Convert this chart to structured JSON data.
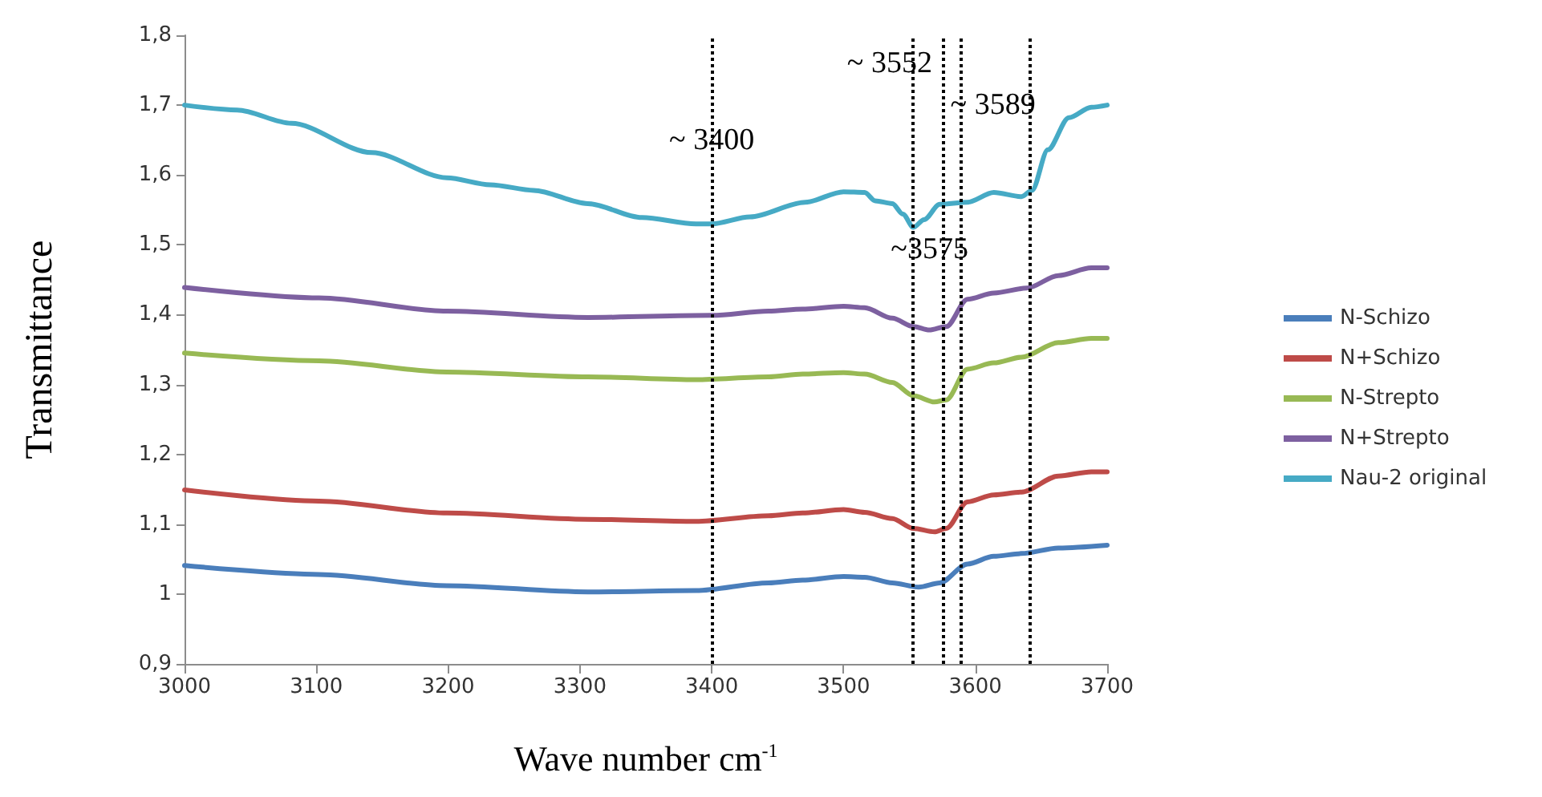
{
  "chart_data": {
    "type": "line",
    "xlabel": "Wave number cm$^{-1}$",
    "ylabel": "Transmittance",
    "xlim": [
      3000,
      3700
    ],
    "xticks": [
      3000,
      3100,
      3200,
      3300,
      3400,
      3500,
      3600,
      3700
    ],
    "ylim": [
      0.9,
      1.8
    ],
    "yticks": [
      {
        "value": 0.9,
        "label": "0,9"
      },
      1,
      {
        "value": 1.1,
        "label": "1,1"
      },
      {
        "value": 1.2,
        "label": "1,2"
      },
      {
        "value": 1.3,
        "label": "1,3"
      },
      {
        "value": 1.4,
        "label": "1,4"
      },
      {
        "value": 1.5,
        "label": "1,5"
      },
      {
        "value": 1.6,
        "label": "1,6"
      },
      {
        "value": 1.7,
        "label": "1,7"
      },
      {
        "value": 1.8,
        "label": "1,8"
      }
    ],
    "grid": false,
    "legend": "right",
    "marker": "none",
    "line_style": "solid",
    "series": [
      {
        "name": "N-Schizo",
        "color": "#4a7ebb",
        "x": [
          3000,
          3102,
          3199,
          3306,
          3388,
          3443,
          3469,
          3500,
          3516,
          3537,
          3557,
          3573,
          3594,
          3614,
          3635,
          3663,
          3700
        ],
        "values": [
          1.041,
          1.028,
          1.012,
          1.003,
          1.005,
          1.016,
          1.02,
          1.025,
          1.024,
          1.016,
          1.01,
          1.016,
          1.043,
          1.054,
          1.058,
          1.066,
          1.07
        ]
      },
      {
        "name": "N+Schizo",
        "color": "#be4b48",
        "x": [
          3000,
          3102,
          3199,
          3306,
          3388,
          3443,
          3469,
          3500,
          3516,
          3537,
          3553,
          3569,
          3578,
          3594,
          3614,
          3635,
          3663,
          3688,
          3700
        ],
        "values": [
          1.149,
          1.133,
          1.116,
          1.107,
          1.104,
          1.112,
          1.116,
          1.121,
          1.117,
          1.108,
          1.094,
          1.089,
          1.094,
          1.132,
          1.142,
          1.146,
          1.169,
          1.175,
          1.175
        ]
      },
      {
        "name": "N-Strepto",
        "color": "#98b954",
        "x": [
          3000,
          3102,
          3199,
          3306,
          3388,
          3443,
          3469,
          3500,
          3516,
          3537,
          3553,
          3569,
          3578,
          3594,
          3614,
          3635,
          3663,
          3688,
          3700
        ],
        "values": [
          1.345,
          1.334,
          1.318,
          1.311,
          1.307,
          1.311,
          1.315,
          1.317,
          1.315,
          1.303,
          1.284,
          1.275,
          1.278,
          1.322,
          1.331,
          1.339,
          1.36,
          1.366,
          1.366
        ]
      },
      {
        "name": "N+Strepto",
        "color": "#7d60a0",
        "x": [
          3000,
          3102,
          3199,
          3306,
          3400,
          3443,
          3469,
          3500,
          3516,
          3537,
          3553,
          3565,
          3578,
          3594,
          3614,
          3639,
          3663,
          3688,
          3700
        ],
        "values": [
          1.439,
          1.424,
          1.405,
          1.396,
          1.399,
          1.405,
          1.408,
          1.412,
          1.41,
          1.395,
          1.383,
          1.378,
          1.383,
          1.422,
          1.431,
          1.438,
          1.456,
          1.467,
          1.467
        ]
      },
      {
        "name": "Nau-2 original",
        "color": "#46aac5",
        "x": [
          3000,
          3040,
          3081,
          3142,
          3199,
          3232,
          3265,
          3306,
          3347,
          3388,
          3400,
          3429,
          3471,
          3500,
          3516,
          3524,
          3537,
          3545,
          3553,
          3561,
          3573,
          3594,
          3614,
          3635,
          3643,
          3655,
          3671,
          3688,
          3700
        ],
        "values": [
          1.7,
          1.693,
          1.674,
          1.632,
          1.596,
          1.586,
          1.578,
          1.559,
          1.539,
          1.53,
          1.53,
          1.54,
          1.561,
          1.576,
          1.575,
          1.563,
          1.559,
          1.544,
          1.525,
          1.536,
          1.558,
          1.561,
          1.575,
          1.569,
          1.578,
          1.636,
          1.682,
          1.697,
          1.7
        ]
      }
    ],
    "ref_lines": [
      {
        "axis": "x",
        "value": 3400,
        "label": "~ 3400",
        "color": "#000000",
        "line_style": "dotted"
      },
      {
        "axis": "x",
        "value": 3552,
        "label": "~ 3552",
        "color": "#000000",
        "line_style": "dotted"
      },
      {
        "axis": "x",
        "value": 3575,
        "label": "~3575",
        "color": "#000000",
        "line_style": "dotted"
      },
      {
        "axis": "x",
        "value": 3589,
        "label": "~ 3589",
        "color": "#000000",
        "line_style": "dotted"
      },
      {
        "axis": "x",
        "value": 3641,
        "label": null,
        "color": "#000000",
        "line_style": "dotted"
      }
    ]
  }
}
